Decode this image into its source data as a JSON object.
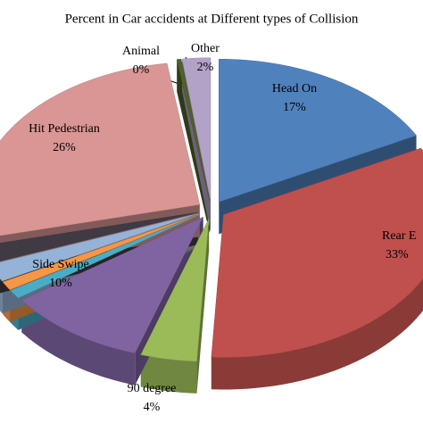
{
  "chart_data": {
    "type": "pie3d",
    "title": "Percent in Car accidents at Different types of Collision",
    "categories": [
      "Head On",
      "Rear E",
      "90 degree",
      "Side Swipe",
      null,
      null,
      null,
      null,
      "Hit Pedestrian",
      "Animal",
      "Other"
    ],
    "values": [
      17,
      33,
      4,
      10,
      1,
      1,
      2,
      2,
      26,
      0.3,
      2
    ],
    "value_labels": [
      "17%",
      "33%",
      "4%",
      "10%",
      null,
      null,
      null,
      null,
      "26%",
      "0%",
      "2%"
    ],
    "colors": [
      "#4f81bd",
      "#c0504d",
      "#9bbb59",
      "#8064a2",
      "#4bacc6",
      "#f79646",
      "#95b3d7",
      "#3f3a44",
      "#d99694",
      "#4f6228",
      "#b3a2c7"
    ]
  }
}
